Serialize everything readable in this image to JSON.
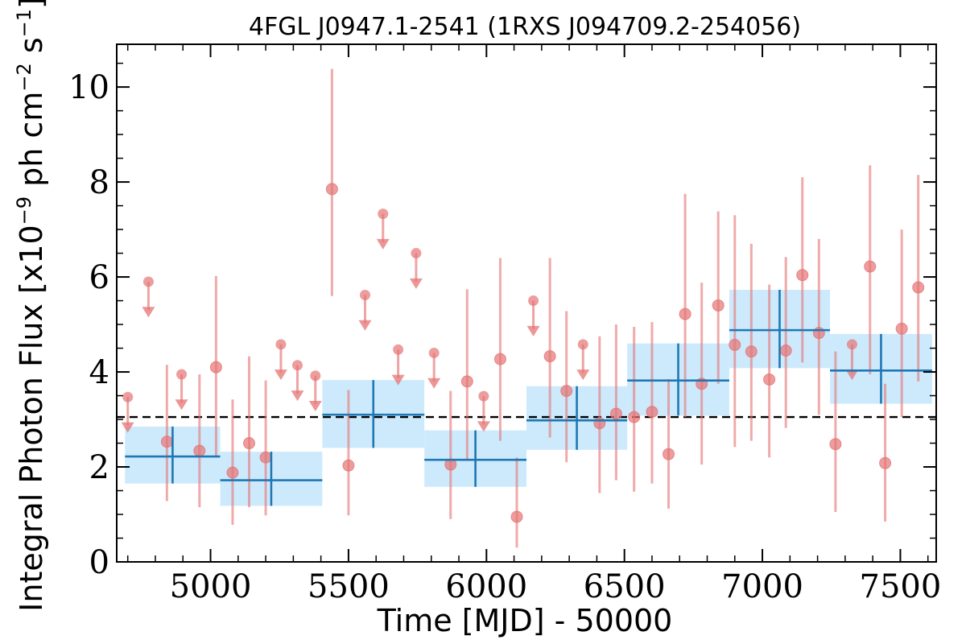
{
  "chart_data": {
    "type": "scatter",
    "title": "4FGL J0947.1-2541 (1RXS J094709.2-254056)",
    "xlabel": "Time [MJD] - 50000",
    "ylabel": {
      "prefix": "Integral Photon Flux [x10",
      "exp1": "−9",
      "mid": " ph cm",
      "exp2": "−2",
      "mid2": " s",
      "exp3": "−1",
      "suffix": "]"
    },
    "xlim": [
      4660,
      7630
    ],
    "ylim": [
      0,
      10.9
    ],
    "xticks": [
      "5000",
      "5500",
      "6000",
      "6500",
      "7000",
      "7500"
    ],
    "yticks": [
      "0",
      "2",
      "4",
      "6",
      "8",
      "10"
    ],
    "mean_flux": 3.05,
    "colors": {
      "points": "#e57373",
      "bins": "#1f77b4",
      "bin_fill": "#cdeafd",
      "mean_line": "#000000"
    },
    "detections": [
      {
        "x": 4842,
        "y": 2.53,
        "lo": 1.28,
        "hi": 4.15
      },
      {
        "x": 4960,
        "y": 2.34,
        "lo": 1.15,
        "hi": 3.95
      },
      {
        "x": 5020,
        "y": 4.1,
        "lo": 2.2,
        "hi": 6.02
      },
      {
        "x": 5080,
        "y": 1.88,
        "lo": 0.78,
        "hi": 3.42
      },
      {
        "x": 5140,
        "y": 2.5,
        "lo": 1.15,
        "hi": 4.33
      },
      {
        "x": 5200,
        "y": 2.2,
        "lo": 0.98,
        "hi": 3.82
      },
      {
        "x": 5440,
        "y": 7.85,
        "lo": 5.6,
        "hi": 10.38
      },
      {
        "x": 5500,
        "y": 2.03,
        "lo": 0.98,
        "hi": 3.62
      },
      {
        "x": 5870,
        "y": 2.05,
        "lo": 0.9,
        "hi": 3.6
      },
      {
        "x": 5930,
        "y": 3.8,
        "lo": 2.15,
        "hi": 5.74
      },
      {
        "x": 6050,
        "y": 4.27,
        "lo": 2.55,
        "hi": 6.4
      },
      {
        "x": 6110,
        "y": 0.95,
        "lo": 0.3,
        "hi": 2.2
      },
      {
        "x": 6230,
        "y": 4.33,
        "lo": 2.62,
        "hi": 6.4
      },
      {
        "x": 6290,
        "y": 3.6,
        "lo": 2.1,
        "hi": 5.28
      },
      {
        "x": 6410,
        "y": 2.92,
        "lo": 1.45,
        "hi": 4.75
      },
      {
        "x": 6470,
        "y": 3.12,
        "lo": 1.72,
        "hi": 5.0
      },
      {
        "x": 6535,
        "y": 3.05,
        "lo": 1.48,
        "hi": 4.95
      },
      {
        "x": 6600,
        "y": 3.16,
        "lo": 1.65,
        "hi": 5.05
      },
      {
        "x": 6660,
        "y": 2.27,
        "lo": 1.12,
        "hi": 3.85
      },
      {
        "x": 6720,
        "y": 5.22,
        "lo": 3.05,
        "hi": 7.75
      },
      {
        "x": 6780,
        "y": 3.75,
        "lo": 2.05,
        "hi": 5.88
      },
      {
        "x": 6840,
        "y": 5.4,
        "lo": 3.75,
        "hi": 7.38
      },
      {
        "x": 6900,
        "y": 4.57,
        "lo": 2.42,
        "hi": 7.3
      },
      {
        "x": 6960,
        "y": 4.43,
        "lo": 2.55,
        "hi": 6.7
      },
      {
        "x": 7025,
        "y": 3.84,
        "lo": 2.2,
        "hi": 5.84
      },
      {
        "x": 7085,
        "y": 4.45,
        "lo": 2.82,
        "hi": 6.42
      },
      {
        "x": 7145,
        "y": 6.04,
        "lo": 4.2,
        "hi": 8.1
      },
      {
        "x": 7205,
        "y": 4.82,
        "lo": 3.1,
        "hi": 6.8
      },
      {
        "x": 7265,
        "y": 2.48,
        "lo": 1.05,
        "hi": 4.43
      },
      {
        "x": 7390,
        "y": 6.22,
        "lo": 3.95,
        "hi": 8.35
      },
      {
        "x": 7445,
        "y": 2.08,
        "lo": 0.85,
        "hi": 3.75
      },
      {
        "x": 7505,
        "y": 4.91,
        "lo": 3.05,
        "hi": 7.0
      },
      {
        "x": 7565,
        "y": 5.78,
        "lo": 3.8,
        "hi": 8.15
      }
    ],
    "upper_limits": [
      {
        "x": 4700,
        "y": 3.47
      },
      {
        "x": 4775,
        "y": 5.9
      },
      {
        "x": 4895,
        "y": 3.95
      },
      {
        "x": 5255,
        "y": 4.58
      },
      {
        "x": 5315,
        "y": 4.14
      },
      {
        "x": 5380,
        "y": 3.92
      },
      {
        "x": 5560,
        "y": 5.62
      },
      {
        "x": 5625,
        "y": 7.33
      },
      {
        "x": 5680,
        "y": 4.47
      },
      {
        "x": 5745,
        "y": 6.5
      },
      {
        "x": 5810,
        "y": 4.4
      },
      {
        "x": 5990,
        "y": 3.49
      },
      {
        "x": 6170,
        "y": 5.5
      },
      {
        "x": 6350,
        "y": 4.58
      },
      {
        "x": 7325,
        "y": 4.58
      }
    ],
    "bins": [
      {
        "x0": 4690,
        "x1": 5035,
        "y": 2.22,
        "ylo": 1.65,
        "yhi": 2.85
      },
      {
        "x0": 5035,
        "x1": 5405,
        "y": 1.72,
        "ylo": 1.18,
        "yhi": 2.32
      },
      {
        "x0": 5405,
        "x1": 5775,
        "y": 3.1,
        "ylo": 2.4,
        "yhi": 3.83
      },
      {
        "x0": 5775,
        "x1": 6145,
        "y": 2.15,
        "ylo": 1.58,
        "yhi": 2.77
      },
      {
        "x0": 6145,
        "x1": 6510,
        "y": 2.98,
        "ylo": 2.36,
        "yhi": 3.7
      },
      {
        "x0": 6510,
        "x1": 6880,
        "y": 3.82,
        "ylo": 3.08,
        "yhi": 4.6
      },
      {
        "x0": 6880,
        "x1": 7245,
        "y": 4.88,
        "ylo": 4.08,
        "yhi": 5.73
      },
      {
        "x0": 7245,
        "x1": 7615,
        "y": 4.03,
        "ylo": 3.33,
        "yhi": 4.8
      }
    ]
  }
}
